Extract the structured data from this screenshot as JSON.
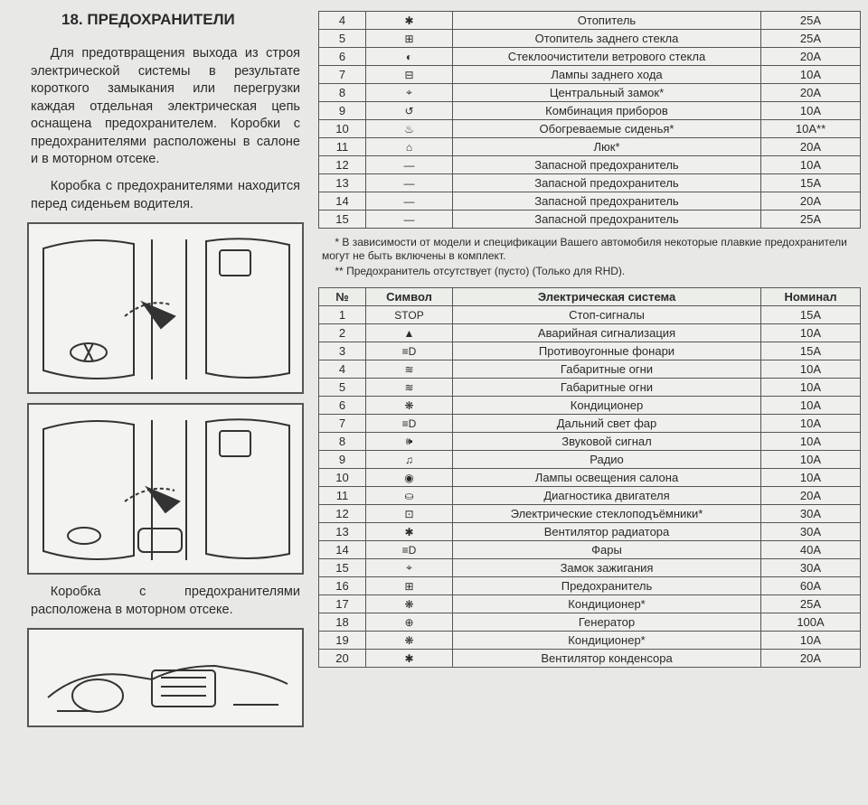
{
  "title": "18. ПРЕДОХРАНИТЕЛИ",
  "para1": "Для предотвращения выхода из строя электрической системы в результате короткого замыкания или перегрузки каждая отдельная электрическая цепь оснащена предохранителем. Коробки с предохранителями расположены в салоне и в моторном отсеке.",
  "para2": "Коробка с предохранителями находится перед сиденьем водителя.",
  "para3": "Коробка с предохранителями расположена в моторном отсеке.",
  "footnote1": "* В зависимости от модели и спецификации Вашего автомобиля некоторые плавкие предохранители могут не быть включены в комплект.",
  "footnote2": "** Предохранитель отсутствует (пусто) (Только для RHD).",
  "headers": {
    "num": "№",
    "sym": "Символ",
    "sys": "Электрическая система",
    "nom": "Номинал"
  },
  "table1": [
    {
      "n": "4",
      "sym": "✱",
      "sys": "Отопитель",
      "nom": "25A"
    },
    {
      "n": "5",
      "sym": "⊞",
      "sys": "Отопитель заднего стекла",
      "nom": "25A"
    },
    {
      "n": "6",
      "sym": "◐",
      "sys": "Стеклоочистители ветрового стекла",
      "nom": "20A"
    },
    {
      "n": "7",
      "sym": "⊟",
      "sys": "Лампы заднего хода",
      "nom": "10A"
    },
    {
      "n": "8",
      "sym": "⌖",
      "sys": "Центральный замок*",
      "nom": "20A"
    },
    {
      "n": "9",
      "sym": "↺",
      "sys": "Комбинация приборов",
      "nom": "10A"
    },
    {
      "n": "10",
      "sym": "♨",
      "sys": "Обогреваемые сиденья*",
      "nom": "10A**"
    },
    {
      "n": "11",
      "sym": "⌂",
      "sys": "Люк*",
      "nom": "20A"
    },
    {
      "n": "12",
      "sym": "—",
      "sys": "Запасной предохранитель",
      "nom": "10A"
    },
    {
      "n": "13",
      "sym": "—",
      "sys": "Запасной предохранитель",
      "nom": "15A"
    },
    {
      "n": "14",
      "sym": "—",
      "sys": "Запасной предохранитель",
      "nom": "20A"
    },
    {
      "n": "15",
      "sym": "—",
      "sys": "Запасной предохранитель",
      "nom": "25A"
    }
  ],
  "table2": [
    {
      "n": "1",
      "sym": "STOP",
      "sys": "Стоп-сигналы",
      "nom": "15A"
    },
    {
      "n": "2",
      "sym": "▲",
      "sys": "Аварийная сигнализация",
      "nom": "10A"
    },
    {
      "n": "3",
      "sym": "≡D",
      "sys": "Противоугонные фонари",
      "nom": "15A"
    },
    {
      "n": "4",
      "sym": "≋",
      "sys": "Габаритные огни",
      "nom": "10A"
    },
    {
      "n": "5",
      "sym": "≋",
      "sys": "Габаритные огни",
      "nom": "10A"
    },
    {
      "n": "6",
      "sym": "❋",
      "sys": "Кондиционер",
      "nom": "10A"
    },
    {
      "n": "7",
      "sym": "≡D",
      "sys": "Дальний свет фар",
      "nom": "10A"
    },
    {
      "n": "8",
      "sym": "🕪",
      "sys": "Звуковой сигнал",
      "nom": "10A"
    },
    {
      "n": "9",
      "sym": "♫",
      "sys": "Радио",
      "nom": "10A"
    },
    {
      "n": "10",
      "sym": "◉",
      "sys": "Лампы освещения салона",
      "nom": "10A"
    },
    {
      "n": "11",
      "sym": "⛀",
      "sys": "Диагностика двигателя",
      "nom": "20A"
    },
    {
      "n": "12",
      "sym": "⊡",
      "sys": "Электрические стеклоподъёмники*",
      "nom": "30A"
    },
    {
      "n": "13",
      "sym": "✱",
      "sys": "Вентилятор радиатора",
      "nom": "30A"
    },
    {
      "n": "14",
      "sym": "≡D",
      "sys": "Фары",
      "nom": "40A"
    },
    {
      "n": "15",
      "sym": "⌖",
      "sys": "Замок зажигания",
      "nom": "30A"
    },
    {
      "n": "16",
      "sym": "⊞",
      "sys": "Предохранитель",
      "nom": "60A"
    },
    {
      "n": "17",
      "sym": "❋",
      "sys": "Кондиционер*",
      "nom": "25A"
    },
    {
      "n": "18",
      "sym": "⊕",
      "sys": "Генератор",
      "nom": "100A"
    },
    {
      "n": "19",
      "sym": "❋",
      "sys": "Кондиционер*",
      "nom": "10A"
    },
    {
      "n": "20",
      "sym": "✱",
      "sys": "Вентилятор конденсора",
      "nom": "20A"
    }
  ],
  "diagram_stroke": "#333333",
  "diagram_bg": "#f3f3f1"
}
